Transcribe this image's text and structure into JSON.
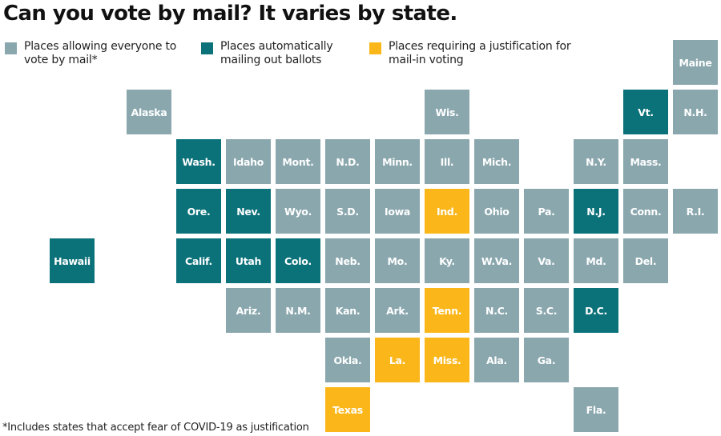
{
  "title": "Can you vote by mail? It varies by state.",
  "colors": {
    "everyone": "#8aa7ae",
    "automatic": "#0c727a",
    "justification": "#fbb71a"
  },
  "legend": [
    {
      "category": "everyone",
      "label": "Places allowing everyone to vote by mail*"
    },
    {
      "category": "automatic",
      "label": "Places automatically mailing out ballots"
    },
    {
      "category": "justification",
      "label": "Places requiring a justification for mail-in voting"
    }
  ],
  "footnote": "*Includes states that accept fear of COVID-19 as justification",
  "states": [
    {
      "label": "Maine",
      "category": "everyone",
      "row": 0,
      "col": 12
    },
    {
      "label": "Alaska",
      "category": "everyone",
      "row": 1,
      "col": 1
    },
    {
      "label": "Wis.",
      "category": "everyone",
      "row": 1,
      "col": 7
    },
    {
      "label": "Vt.",
      "category": "automatic",
      "row": 1,
      "col": 11
    },
    {
      "label": "N.H.",
      "category": "everyone",
      "row": 1,
      "col": 12
    },
    {
      "label": "Wash.",
      "category": "automatic",
      "row": 2,
      "col": 2
    },
    {
      "label": "Idaho",
      "category": "everyone",
      "row": 2,
      "col": 3
    },
    {
      "label": "Mont.",
      "category": "everyone",
      "row": 2,
      "col": 4
    },
    {
      "label": "N.D.",
      "category": "everyone",
      "row": 2,
      "col": 5
    },
    {
      "label": "Minn.",
      "category": "everyone",
      "row": 2,
      "col": 6
    },
    {
      "label": "Ill.",
      "category": "everyone",
      "row": 2,
      "col": 7
    },
    {
      "label": "Mich.",
      "category": "everyone",
      "row": 2,
      "col": 8
    },
    {
      "label": "N.Y.",
      "category": "everyone",
      "row": 2,
      "col": 10
    },
    {
      "label": "Mass.",
      "category": "everyone",
      "row": 2,
      "col": 11
    },
    {
      "label": "Ore.",
      "category": "automatic",
      "row": 3,
      "col": 2
    },
    {
      "label": "Nev.",
      "category": "automatic",
      "row": 3,
      "col": 3
    },
    {
      "label": "Wyo.",
      "category": "everyone",
      "row": 3,
      "col": 4
    },
    {
      "label": "S.D.",
      "category": "everyone",
      "row": 3,
      "col": 5
    },
    {
      "label": "Iowa",
      "category": "everyone",
      "row": 3,
      "col": 6
    },
    {
      "label": "Ind.",
      "category": "justification",
      "row": 3,
      "col": 7
    },
    {
      "label": "Ohio",
      "category": "everyone",
      "row": 3,
      "col": 8
    },
    {
      "label": "Pa.",
      "category": "everyone",
      "row": 3,
      "col": 9
    },
    {
      "label": "N.J.",
      "category": "automatic",
      "row": 3,
      "col": 10
    },
    {
      "label": "Conn.",
      "category": "everyone",
      "row": 3,
      "col": 11
    },
    {
      "label": "R.I.",
      "category": "everyone",
      "row": 3,
      "col": 12
    },
    {
      "label": "Hawaii",
      "category": "automatic",
      "row": 4,
      "col": 0
    },
    {
      "label": "Calif.",
      "category": "automatic",
      "row": 4,
      "col": 2
    },
    {
      "label": "Utah",
      "category": "automatic",
      "row": 4,
      "col": 3
    },
    {
      "label": "Colo.",
      "category": "automatic",
      "row": 4,
      "col": 4
    },
    {
      "label": "Neb.",
      "category": "everyone",
      "row": 4,
      "col": 5
    },
    {
      "label": "Mo.",
      "category": "everyone",
      "row": 4,
      "col": 6
    },
    {
      "label": "Ky.",
      "category": "everyone",
      "row": 4,
      "col": 7
    },
    {
      "label": "W.Va.",
      "category": "everyone",
      "row": 4,
      "col": 8
    },
    {
      "label": "Va.",
      "category": "everyone",
      "row": 4,
      "col": 9
    },
    {
      "label": "Md.",
      "category": "everyone",
      "row": 4,
      "col": 10
    },
    {
      "label": "Del.",
      "category": "everyone",
      "row": 4,
      "col": 11
    },
    {
      "label": "Ariz.",
      "category": "everyone",
      "row": 5,
      "col": 3
    },
    {
      "label": "N.M.",
      "category": "everyone",
      "row": 5,
      "col": 4
    },
    {
      "label": "Kan.",
      "category": "everyone",
      "row": 5,
      "col": 5
    },
    {
      "label": "Ark.",
      "category": "everyone",
      "row": 5,
      "col": 6
    },
    {
      "label": "Tenn.",
      "category": "justification",
      "row": 5,
      "col": 7
    },
    {
      "label": "N.C.",
      "category": "everyone",
      "row": 5,
      "col": 8
    },
    {
      "label": "S.C.",
      "category": "everyone",
      "row": 5,
      "col": 9
    },
    {
      "label": "D.C.",
      "category": "automatic",
      "row": 5,
      "col": 10
    },
    {
      "label": "Okla.",
      "category": "everyone",
      "row": 6,
      "col": 5
    },
    {
      "label": "La.",
      "category": "justification",
      "row": 6,
      "col": 6
    },
    {
      "label": "Miss.",
      "category": "justification",
      "row": 6,
      "col": 7
    },
    {
      "label": "Ala.",
      "category": "everyone",
      "row": 6,
      "col": 8
    },
    {
      "label": "Ga.",
      "category": "everyone",
      "row": 6,
      "col": 9
    },
    {
      "label": "Texas",
      "category": "justification",
      "row": 7,
      "col": 5
    },
    {
      "label": "Fla.",
      "category": "everyone",
      "row": 7,
      "col": 10
    }
  ]
}
